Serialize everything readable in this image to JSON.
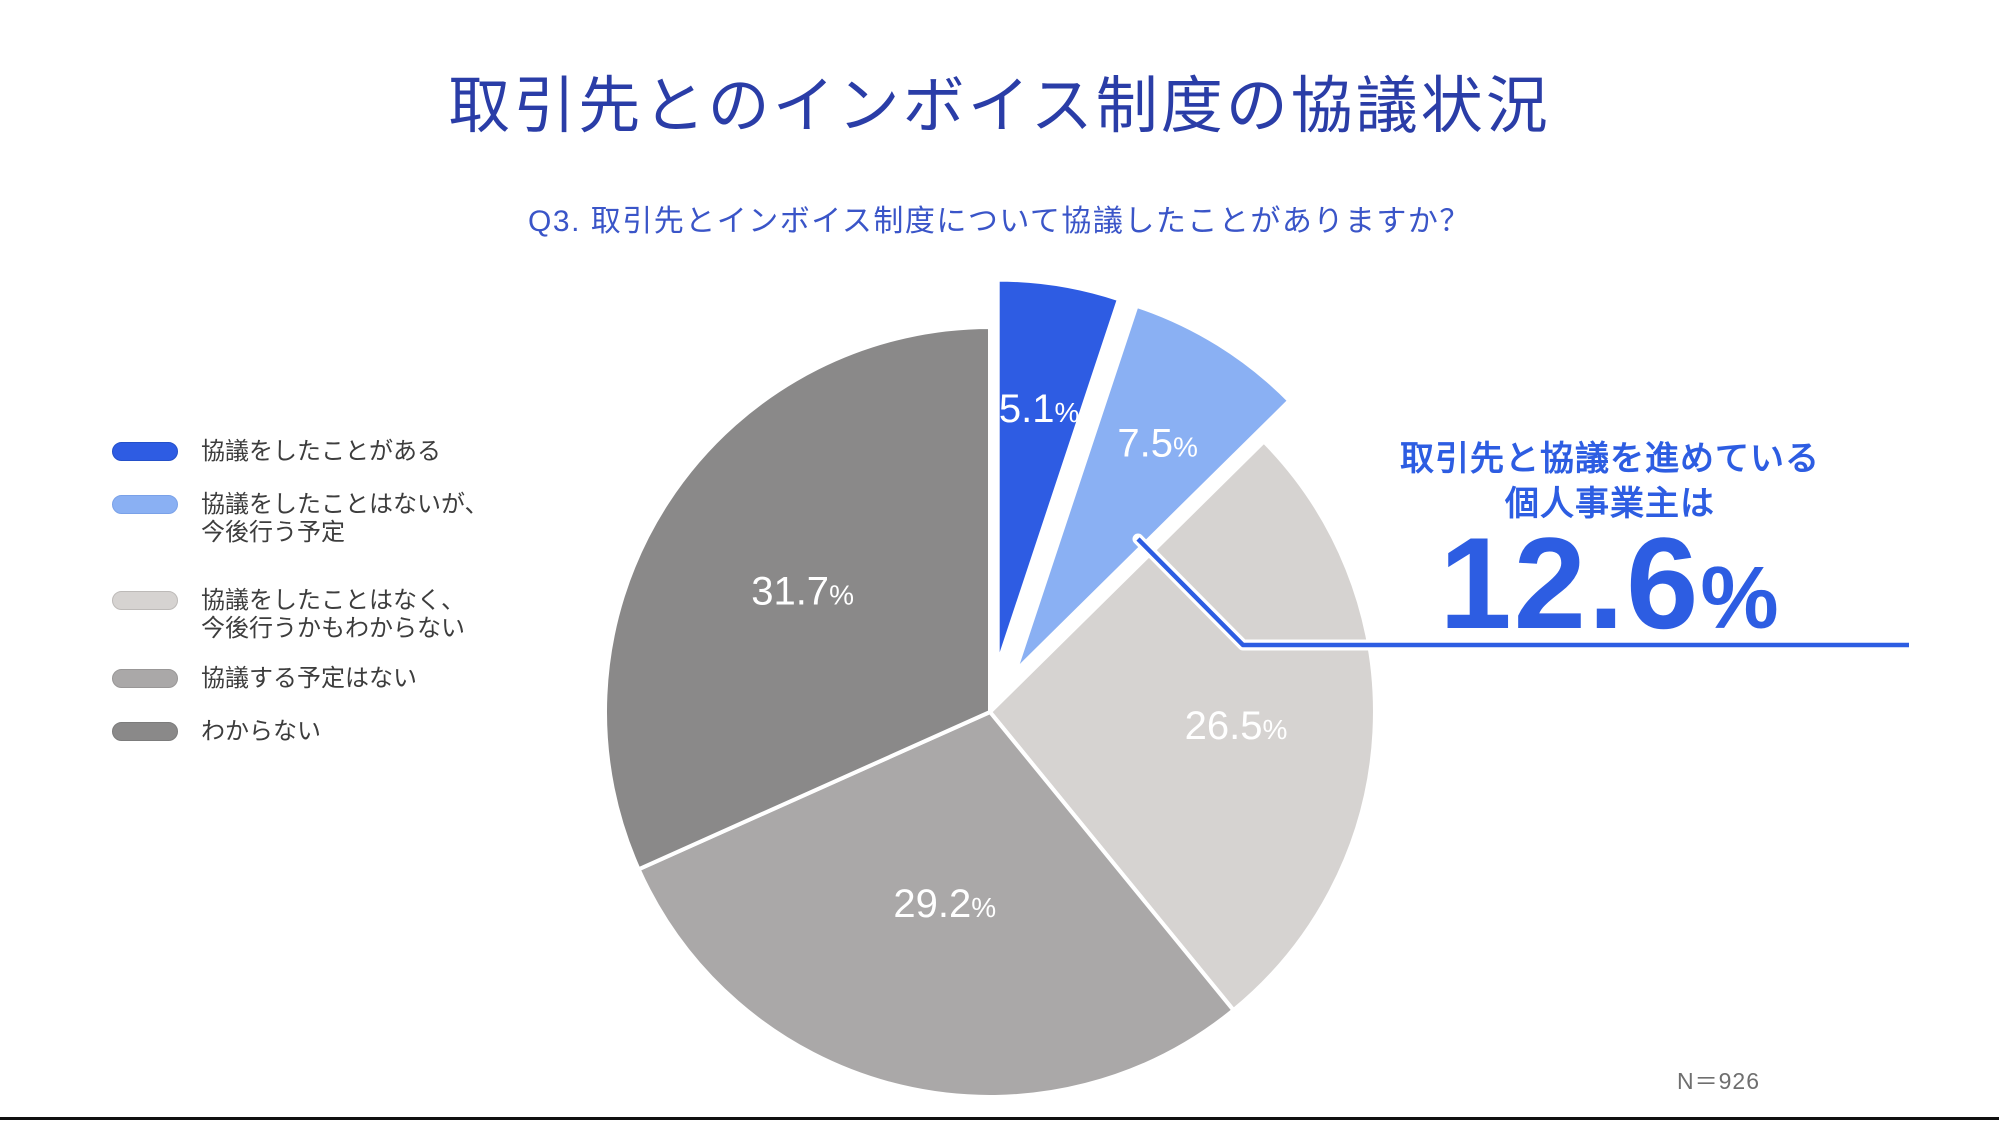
{
  "page": {
    "background": "#ffffff",
    "bottom_rule_color": "#101010"
  },
  "title": {
    "text": "取引先とのインボイス制度の協議状況",
    "color": "#2a3da7"
  },
  "subtitle": {
    "text": "Q3. 取引先とインボイス制度について協議したことがありますか？",
    "color": "#3a55c8"
  },
  "legend": {
    "text_color": "#3d3d3d",
    "items": [
      {
        "lines": [
          "協議をしたことがある"
        ],
        "color": "#2e5ce3",
        "border": "#2450c9"
      },
      {
        "lines": [
          "協議をしたことはないが、",
          "今後行う予定"
        ],
        "color": "#8ab0f3",
        "border": "#7aa1e8"
      },
      {
        "lines": [
          "協議をしたことはなく、",
          "今後行うかもわからない"
        ],
        "color": "#d6d3d1",
        "border": "#bdbab8"
      },
      {
        "lines": [
          "協議する予定はない"
        ],
        "color": "#aaa8a8",
        "border": "#999797"
      },
      {
        "lines": [
          "わからない"
        ],
        "color": "#8a8989",
        "border": "#7c7c7c"
      }
    ]
  },
  "annotation": {
    "line1": "取引先と協議を進めている",
    "line2": "個人事業主は",
    "value": "12.6",
    "unit": "%",
    "color": "#2d5de2"
  },
  "footnote": {
    "text": "N＝926",
    "color": "#6f6f6f"
  },
  "chart_data": {
    "type": "pie",
    "title": "取引先とのインボイス制度の協議状況",
    "question": "Q3. 取引先とインボイス制度について協議したことがありますか？",
    "categories": [
      "協議をしたことがある",
      "協議をしたことはないが、今後行う予定",
      "協議をしたことはなく、今後行うかもわからない",
      "協議する予定はない",
      "わからない"
    ],
    "values": [
      5.1,
      7.5,
      26.5,
      29.2,
      31.7
    ],
    "unit": "%",
    "total": 100.0,
    "colors": [
      "#2e5ce3",
      "#8ab0f3",
      "#d6d3d1",
      "#aaa8a8",
      "#8a8989"
    ],
    "exploded": [
      true,
      true,
      false,
      false,
      false
    ],
    "slice_label_color": "#ffffff",
    "start_angle_deg": 0,
    "direction": "clockwise",
    "legend_position": "left",
    "highlight": {
      "label": "取引先と協議を進めている個人事業主",
      "value": 12.6,
      "unit": "%"
    },
    "sample_size_label": "N＝926"
  }
}
